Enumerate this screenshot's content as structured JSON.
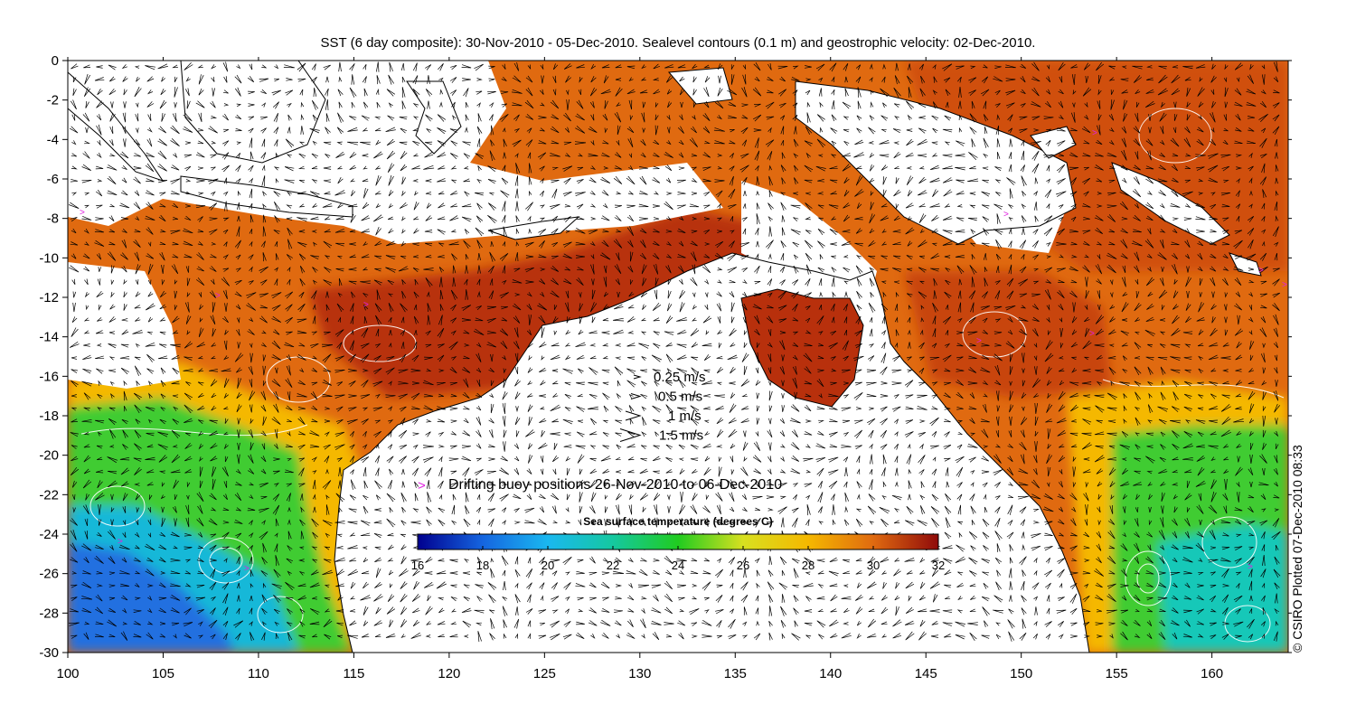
{
  "title": "SST (6 day composite): 30-Nov-2010 - 05-Dec-2010. Sealevel contours (0.1 m) and geostrophic velocity: 02-Dec-2010.",
  "credit": "© CSIRO Plotted 07-Dec-2010 08:33",
  "map": {
    "lon_range": [
      100,
      164
    ],
    "lat_range": [
      -30,
      0
    ],
    "x_ticks": [
      100,
      105,
      110,
      115,
      120,
      125,
      130,
      135,
      140,
      145,
      150,
      155,
      160
    ],
    "y_ticks": [
      0,
      -2,
      -4,
      -6,
      -8,
      -10,
      -12,
      -14,
      -16,
      -18,
      -20,
      -22,
      -24,
      -26,
      -28,
      -30
    ],
    "land_color": "#ffffff",
    "contour_color": "#ffffff",
    "vector_color": "#000000"
  },
  "velocity_legend": {
    "items": [
      {
        "label": "0.25 m/s",
        "speed": 0.25
      },
      {
        "label": "0.5 m/s",
        "speed": 0.5
      },
      {
        "label": "1 m/s",
        "speed": 1
      },
      {
        "label": "1.5 m/s",
        "speed": 1.5
      }
    ]
  },
  "buoy_legend": {
    "symbol": ">",
    "label": "Drifting buoy positions 26-Nov-2010 to 06-Dec-2010",
    "color": "#e020e0"
  },
  "colorbar": {
    "title": "Sea surface temperature (degrees C)",
    "min": 16,
    "max": 32,
    "ticks": [
      16,
      18,
      20,
      22,
      24,
      26,
      28,
      30,
      32
    ],
    "stops": [
      {
        "value": 16,
        "color": "#00008f"
      },
      {
        "value": 18,
        "color": "#1565e0"
      },
      {
        "value": 20,
        "color": "#1ab8f0"
      },
      {
        "value": 22,
        "color": "#15c8a0"
      },
      {
        "value": 24,
        "color": "#20cc20"
      },
      {
        "value": 26,
        "color": "#d8e020"
      },
      {
        "value": 28,
        "color": "#f5b800"
      },
      {
        "value": 30,
        "color": "#e06a10"
      },
      {
        "value": 32,
        "color": "#8f0a0a"
      }
    ]
  }
}
